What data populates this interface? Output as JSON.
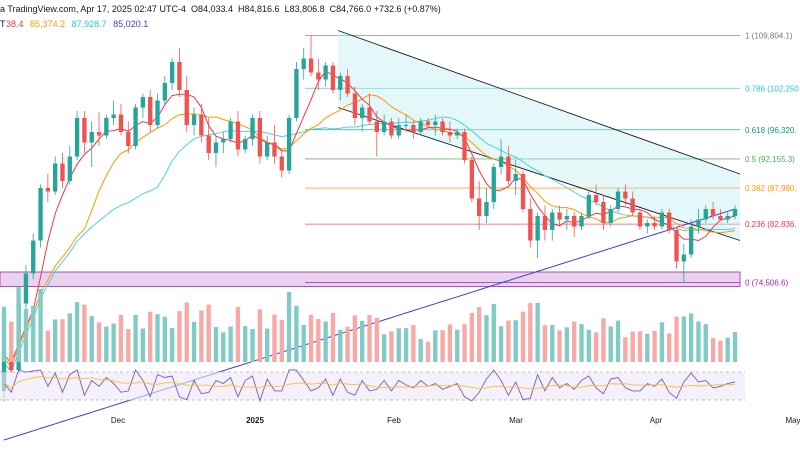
{
  "header": {
    "source": "a TradingView.com, Apr 17, 2025 02:47 UTC-4",
    "open": "O84,033.4",
    "high": "H84,816.6",
    "low": "L83,806.8",
    "close": "C84,766.0 +732.6 (+0.87%)",
    "symbol_suffix": "T"
  },
  "ma_legend": [
    {
      "text": "38.4",
      "color": "#f23645"
    },
    {
      "text": "85,374.2",
      "color": "#ff9800"
    },
    {
      "text": "87,928.7",
      "color": "#26c6da"
    },
    {
      "text": "85,020.1",
      "color": "#3f3fd6"
    }
  ],
  "colors": {
    "up": "#26a69a",
    "down": "#ef5350",
    "channel": "#b2ebf2",
    "zone": "#e1bee7",
    "ma20": "#f23645",
    "ma50": "#ff9800",
    "ma100": "#4dd0e1",
    "ma200": "#3f3fd6"
  },
  "chart_data": {
    "type": "candlestick",
    "x_ticks": [
      "Dec",
      "2025",
      "Feb",
      "Mar",
      "Apr",
      "May"
    ],
    "price_range": [
      72000,
      112000
    ],
    "fib_levels": [
      {
        "label": "1 (109,804.1)",
        "price": 109804.1,
        "color": "#787b86"
      },
      {
        "label": "0.786 (102,250",
        "price": 102250,
        "color": "#26c6da"
      },
      {
        "label": "0.618 (96,320.",
        "price": 96320,
        "color": "#089981"
      },
      {
        "label": "0.5 (92,155.3)",
        "price": 92155.3,
        "color": "#4caf50"
      },
      {
        "label": "0.382 (87,990.",
        "price": 87990,
        "color": "#ff9800"
      },
      {
        "label": "0.236 (82,836.",
        "price": 82836,
        "color": "#f23645"
      },
      {
        "label": "0 (74,506.6)",
        "price": 74506.6,
        "color": "#9c27b0"
      }
    ],
    "candles": [
      [
        59000,
        66000,
        57500,
        64500
      ],
      [
        64500,
        66800,
        61500,
        62000
      ],
      [
        62000,
        72500,
        61500,
        71500
      ],
      [
        71500,
        77000,
        70500,
        75800
      ],
      [
        75800,
        81500,
        75000,
        80500
      ],
      [
        80500,
        88500,
        79500,
        88000
      ],
      [
        88000,
        90000,
        86000,
        87500
      ],
      [
        87500,
        92500,
        87000,
        91500
      ],
      [
        91500,
        93000,
        88000,
        89000
      ],
      [
        89000,
        94000,
        88500,
        92500
      ],
      [
        92500,
        99000,
        92000,
        98000
      ],
      [
        98000,
        99000,
        93000,
        94500
      ],
      [
        94500,
        97500,
        91000,
        96000
      ],
      [
        96000,
        98800,
        94000,
        95500
      ],
      [
        95500,
        98500,
        95000,
        98000
      ],
      [
        98000,
        100500,
        97000,
        98500
      ],
      [
        98500,
        100000,
        95500,
        96000
      ],
      [
        96000,
        97500,
        93000,
        94000
      ],
      [
        94000,
        100000,
        93500,
        99500
      ],
      [
        99500,
        101500,
        98000,
        101000
      ],
      [
        101000,
        102000,
        96000,
        97000
      ],
      [
        97000,
        101500,
        96500,
        100500
      ],
      [
        100500,
        104000,
        100000,
        103000
      ],
      [
        103000,
        106500,
        102000,
        106000
      ],
      [
        106000,
        108000,
        101000,
        102000
      ],
      [
        102000,
        104000,
        96000,
        97000
      ],
      [
        97000,
        99500,
        95500,
        98500
      ],
      [
        98500,
        100000,
        94500,
        95500
      ],
      [
        95500,
        98000,
        92000,
        93000
      ],
      [
        93000,
        95500,
        91000,
        94500
      ],
      [
        94500,
        96000,
        93000,
        95000
      ],
      [
        95000,
        98000,
        94500,
        97500
      ],
      [
        97500,
        99000,
        92500,
        93500
      ],
      [
        93500,
        95500,
        93000,
        95000
      ],
      [
        95000,
        98500,
        94000,
        98000
      ],
      [
        98000,
        99000,
        91500,
        92500
      ],
      [
        92500,
        95500,
        92000,
        94500
      ],
      [
        94500,
        97000,
        91500,
        92500
      ],
      [
        92500,
        93500,
        89500,
        90500
      ],
      [
        90500,
        98500,
        90000,
        98000
      ],
      [
        98000,
        106000,
        97500,
        105000
      ],
      [
        105000,
        108000,
        103500,
        106500
      ],
      [
        106500,
        109800,
        104000,
        104500
      ],
      [
        104500,
        106500,
        102000,
        103500
      ],
      [
        103500,
        106000,
        102500,
        105500
      ],
      [
        105500,
        106000,
        101500,
        102000
      ],
      [
        102000,
        104500,
        100500,
        104000
      ],
      [
        104000,
        105000,
        101000,
        101500
      ],
      [
        101500,
        102500,
        97000,
        98000
      ],
      [
        98000,
        100000,
        96000,
        99500
      ],
      [
        99500,
        101500,
        97000,
        97500
      ],
      [
        97500,
        99000,
        92500,
        96000
      ],
      [
        96000,
        98500,
        95500,
        97500
      ],
      [
        97500,
        98000,
        95000,
        95500
      ],
      [
        95500,
        98000,
        95000,
        97000
      ],
      [
        97000,
        98500,
        96000,
        97000
      ],
      [
        97000,
        97500,
        95000,
        96000
      ],
      [
        96000,
        98000,
        95500,
        97500
      ],
      [
        97500,
        98000,
        96500,
        97000
      ],
      [
        97000,
        98500,
        95500,
        97500
      ],
      [
        97500,
        98000,
        95500,
        96000
      ],
      [
        96000,
        97500,
        94500,
        95500
      ],
      [
        95500,
        96500,
        95000,
        96000
      ],
      [
        96000,
        96500,
        91500,
        92000
      ],
      [
        92000,
        92500,
        86000,
        86500
      ],
      [
        86500,
        89000,
        82000,
        84000
      ],
      [
        84000,
        88000,
        83000,
        86000
      ],
      [
        86000,
        91500,
        85000,
        91000
      ],
      [
        91000,
        95000,
        90000,
        92500
      ],
      [
        92500,
        94000,
        88500,
        89000
      ],
      [
        89000,
        92000,
        87000,
        90000
      ],
      [
        90000,
        90500,
        84500,
        85000
      ],
      [
        85000,
        86500,
        79500,
        80500
      ],
      [
        80500,
        84500,
        78000,
        84000
      ],
      [
        84000,
        85500,
        80500,
        82000
      ],
      [
        82000,
        85000,
        80500,
        84500
      ],
      [
        84500,
        85500,
        82500,
        83500
      ],
      [
        83500,
        85000,
        82000,
        84000
      ],
      [
        84000,
        84500,
        81000,
        82500
      ],
      [
        82500,
        84500,
        82000,
        84000
      ],
      [
        84000,
        87500,
        83500,
        87000
      ],
      [
        87000,
        88500,
        85500,
        86000
      ],
      [
        86000,
        87000,
        82000,
        83000
      ],
      [
        83000,
        85500,
        82500,
        85000
      ],
      [
        85000,
        88000,
        84500,
        87500
      ],
      [
        87500,
        88500,
        85500,
        86500
      ],
      [
        86500,
        87500,
        84000,
        84500
      ],
      [
        84500,
        85000,
        82000,
        82500
      ],
      [
        82500,
        83500,
        81500,
        83000
      ],
      [
        83000,
        84000,
        82000,
        82500
      ],
      [
        82500,
        85000,
        82000,
        84500
      ],
      [
        84500,
        85000,
        81500,
        82000
      ],
      [
        82000,
        82500,
        76500,
        77500
      ],
      [
        77500,
        80000,
        74500,
        78500
      ],
      [
        78500,
        83500,
        78000,
        82500
      ],
      [
        82500,
        85000,
        81500,
        83500
      ],
      [
        83500,
        85500,
        83000,
        85000
      ],
      [
        85000,
        86000,
        83500,
        84000
      ],
      [
        84000,
        85000,
        83500,
        83500
      ],
      [
        83500,
        84500,
        83000,
        84000
      ],
      [
        84000,
        85500,
        83500,
        85000
      ]
    ],
    "volume_note": "volume bars and RSI panel shown below the price pane"
  }
}
